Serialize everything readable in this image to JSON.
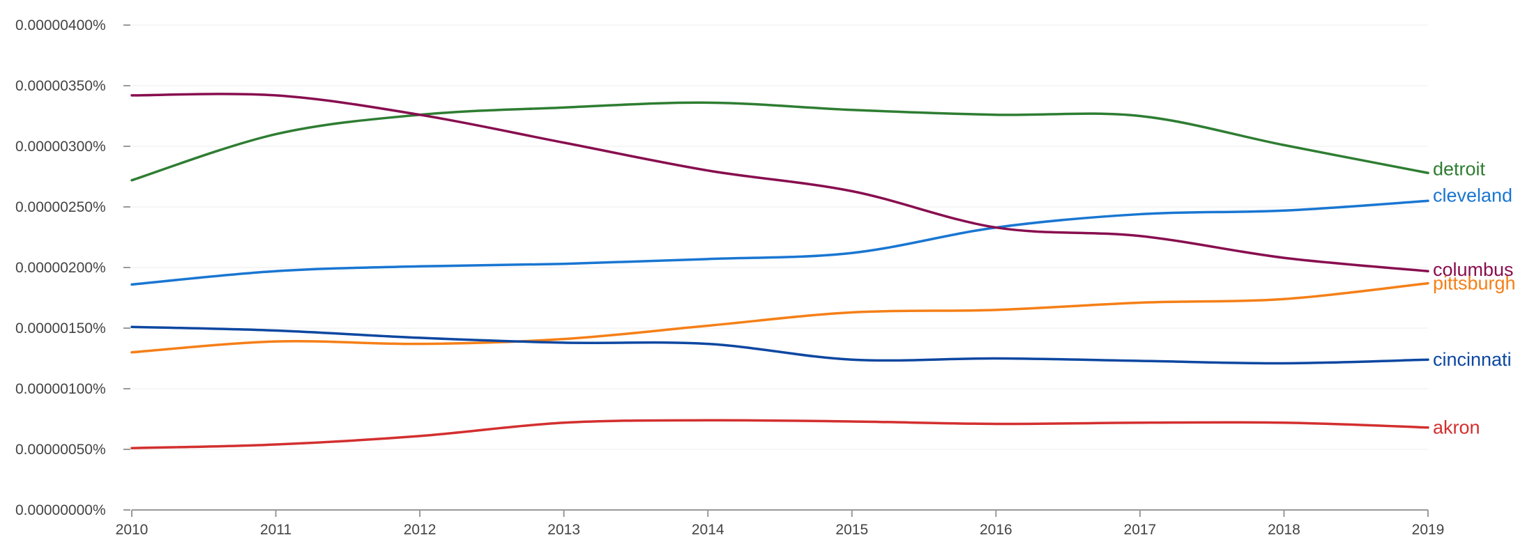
{
  "chart_data": {
    "type": "line",
    "title": "",
    "xlabel": "",
    "ylabel": "",
    "x": [
      2010,
      2011,
      2012,
      2013,
      2014,
      2015,
      2016,
      2017,
      2018,
      2019
    ],
    "x_tick_labels": [
      "2010",
      "2011",
      "2012",
      "2013",
      "2014",
      "2015",
      "2016",
      "2017",
      "2018",
      "2019"
    ],
    "y_ticks": [
      0,
      5e-07,
      1e-06,
      1.5e-06,
      2e-06,
      2.5e-06,
      3e-06,
      3.5e-06,
      4e-06
    ],
    "y_tick_labels": [
      "0.00000000%",
      "0.00000050%",
      "0.00000100%",
      "0.00000150%",
      "0.00000200%",
      "0.00000250%",
      "0.00000300%",
      "0.00000350%",
      "0.00000400%"
    ],
    "ylim": [
      0,
      4e-06
    ],
    "xlim": [
      2010,
      2019
    ],
    "grid": true,
    "legend": "inline labels at right end of lines",
    "series": [
      {
        "name": "detroit",
        "color": "#2e7d32",
        "values": [
          2.72e-06,
          3.1e-06,
          3.26e-06,
          3.32e-06,
          3.36e-06,
          3.3e-06,
          3.26e-06,
          3.25e-06,
          3.01e-06,
          2.78e-06
        ]
      },
      {
        "name": "cleveland",
        "color": "#1976d2",
        "values": [
          1.86e-06,
          1.97e-06,
          2.01e-06,
          2.03e-06,
          2.07e-06,
          2.12e-06,
          2.33e-06,
          2.44e-06,
          2.47e-06,
          2.55e-06
        ]
      },
      {
        "name": "columbus",
        "color": "#880e4f",
        "values": [
          3.42e-06,
          3.42e-06,
          3.26e-06,
          3.03e-06,
          2.8e-06,
          2.63e-06,
          2.33e-06,
          2.26e-06,
          2.08e-06,
          1.97e-06
        ]
      },
      {
        "name": "pittsburgh",
        "color": "#f57f17",
        "values": [
          1.3e-06,
          1.39e-06,
          1.37e-06,
          1.41e-06,
          1.52e-06,
          1.63e-06,
          1.65e-06,
          1.71e-06,
          1.74e-06,
          1.87e-06
        ]
      },
      {
        "name": "cincinnati",
        "color": "#0d47a1",
        "values": [
          1.51e-06,
          1.48e-06,
          1.42e-06,
          1.38e-06,
          1.37e-06,
          1.24e-06,
          1.25e-06,
          1.23e-06,
          1.21e-06,
          1.24e-06
        ]
      },
      {
        "name": "akron",
        "color": "#d32f2f",
        "values": [
          5.1e-07,
          5.4e-07,
          6.1e-07,
          7.2e-07,
          7.4e-07,
          7.3e-07,
          7.1e-07,
          7.2e-07,
          7.2e-07,
          6.8e-07
        ]
      }
    ]
  }
}
